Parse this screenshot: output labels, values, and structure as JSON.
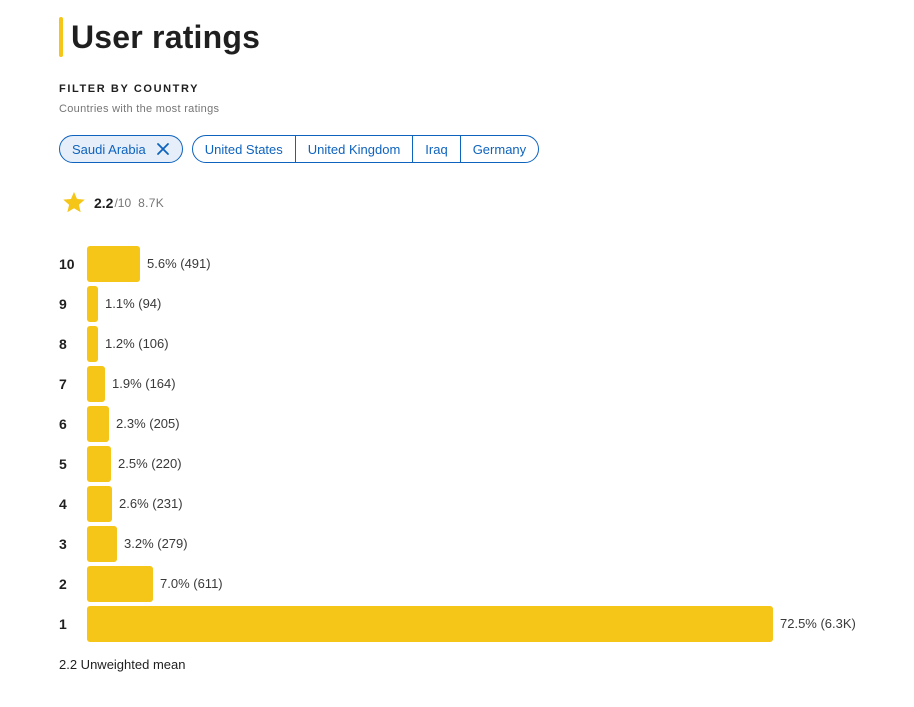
{
  "header": {
    "title": "User ratings",
    "accent_color": "#f5c518"
  },
  "filter": {
    "label": "FILTER BY COUNTRY",
    "subtitle": "Countries with the most ratings",
    "selected": {
      "label": "Saudi Arabia",
      "remove_icon": "close-icon"
    },
    "options": [
      "United States",
      "United Kingdom",
      "Iraq",
      "Germany"
    ]
  },
  "summary": {
    "icon": "star-icon",
    "rating": "2.2",
    "max": "/10",
    "count": "8.7K"
  },
  "chart_data": {
    "type": "bar",
    "orientation": "horizontal",
    "categories": [
      "10",
      "9",
      "8",
      "7",
      "6",
      "5",
      "4",
      "3",
      "2",
      "1"
    ],
    "values": [
      5.6,
      1.1,
      1.2,
      1.9,
      2.3,
      2.5,
      2.6,
      3.2,
      7.0,
      72.5
    ],
    "value_unit": "percent",
    "labels": [
      "5.6% (491)",
      "1.1% (94)",
      "1.2% (106)",
      "1.9% (164)",
      "2.3% (205)",
      "2.5% (220)",
      "2.6% (231)",
      "3.2% (279)",
      "7.0% (611)",
      "72.5% (6.3K)"
    ],
    "bar_color": "#f5c518"
  },
  "footer": {
    "mean_text": "2.2 Unweighted mean"
  }
}
